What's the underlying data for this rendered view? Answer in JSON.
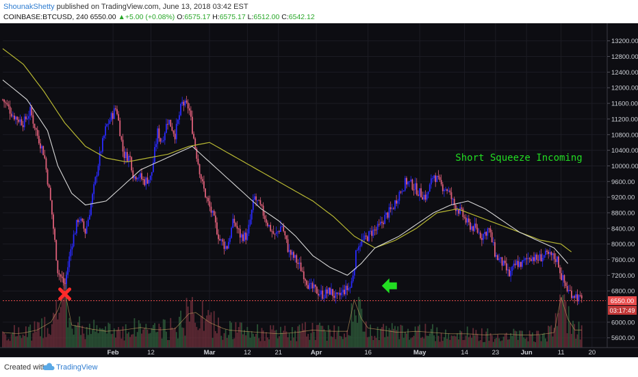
{
  "header": {
    "author": "ShounakShetty",
    "published": " published on TradingView.com, June 13, 2018 03:42 EST",
    "symbol": "COINBASE:BTCUSD, 240",
    "last": "6550.00",
    "change": "+5.00 (+0.08%)",
    "o_label": "O:",
    "o_value": "6575.17",
    "h_label": "H:",
    "h_value": "6575.17",
    "l_label": "L:",
    "l_value": "6512.00",
    "c_label": "C:",
    "c_value": "6542.12"
  },
  "footer": {
    "created_with": "Created with",
    "brand": "TradingView"
  },
  "colors": {
    "background": "#0d0d12",
    "up_candle": "#2a2aff",
    "down_candle": "#e0607a",
    "ma_fast": "#d8d8d8",
    "ma_slow": "#b8b832",
    "annotation": "#22dd22",
    "price_line": "#e84c4c",
    "axis_text": "#cfd2d8"
  },
  "chart_data": {
    "type": "line",
    "title": "",
    "annotation": "Short Squeeze Incoming",
    "y_ticks": [
      13200,
      12800,
      12400,
      12000,
      11600,
      11200,
      10800,
      10400,
      10000,
      9600,
      9200,
      8800,
      8400,
      8000,
      7600,
      7200,
      6800,
      6000,
      5600
    ],
    "ylim": [
      5350,
      13650
    ],
    "x_ticks": [
      {
        "label": "Feb",
        "day": 32
      },
      {
        "label": "12",
        "day": 43
      },
      {
        "label": "Mar",
        "day": 60
      },
      {
        "label": "12",
        "day": 71
      },
      {
        "label": "21",
        "day": 80
      },
      {
        "label": "Apr",
        "day": 91
      },
      {
        "label": "16",
        "day": 106
      },
      {
        "label": "May",
        "day": 121
      },
      {
        "label": "14",
        "day": 134
      },
      {
        "label": "23",
        "day": 143
      },
      {
        "label": "Jun",
        "day": 152
      },
      {
        "label": "11",
        "day": 162
      },
      {
        "label": "20",
        "day": 171
      }
    ],
    "xlim": [
      0,
      175
    ],
    "price_series": {
      "name": "BTCUSD",
      "day": [
        0,
        3,
        6,
        8,
        10,
        12,
        14,
        16,
        18,
        20,
        22,
        24,
        26,
        28,
        30,
        33,
        35,
        37,
        38,
        39,
        41,
        43,
        45,
        46,
        48,
        50,
        52,
        54,
        56,
        58,
        59,
        61,
        63,
        65,
        67,
        69,
        71,
        73,
        75,
        77,
        79,
        81,
        83,
        85,
        87,
        89,
        91,
        93,
        95,
        97,
        99,
        101,
        103,
        105,
        107,
        109,
        111,
        113,
        115,
        117,
        119,
        121,
        123,
        125,
        127,
        129,
        131,
        133,
        135,
        137,
        139,
        141,
        143,
        145,
        147,
        149,
        151,
        153,
        155,
        157,
        159,
        161,
        162,
        164,
        166,
        168
      ],
      "close": [
        11700,
        11300,
        11100,
        11400,
        10800,
        10300,
        9000,
        7300,
        6950,
        8000,
        8700,
        8300,
        9200,
        10200,
        11000,
        11500,
        10300,
        10200,
        9700,
        9800,
        9600,
        9700,
        10900,
        10600,
        11200,
        10800,
        11600,
        11500,
        10400,
        9500,
        9200,
        8700,
        8100,
        7900,
        8600,
        8200,
        8200,
        9200,
        8900,
        8500,
        8200,
        8500,
        7800,
        7600,
        7300,
        6900,
        6800,
        6700,
        6800,
        6600,
        6800,
        6900,
        8000,
        8100,
        8300,
        8400,
        8700,
        8900,
        9300,
        9600,
        9500,
        9300,
        9200,
        9800,
        9500,
        9400,
        9000,
        8800,
        8500,
        8400,
        8200,
        8400,
        7700,
        7500,
        7200,
        7500,
        7500,
        7700,
        7600,
        7700,
        7700,
        7600,
        7200,
        6800,
        6700,
        6542
      ]
    },
    "ma_fast": {
      "day": [
        0,
        7,
        13,
        16,
        20,
        24,
        30,
        35,
        40,
        45,
        50,
        55,
        60,
        65,
        70,
        75,
        80,
        85,
        90,
        95,
        100,
        104,
        108,
        115,
        120,
        125,
        130,
        135,
        140,
        145,
        150,
        155,
        160,
        164
      ],
      "value": [
        12200,
        11700,
        10900,
        10000,
        9300,
        9000,
        9100,
        9500,
        9900,
        10100,
        10300,
        10500,
        10100,
        9700,
        9300,
        8900,
        8600,
        8200,
        7700,
        7400,
        7200,
        7500,
        7900,
        8200,
        8500,
        8800,
        9000,
        9100,
        8900,
        8600,
        8300,
        8100,
        7900,
        7500
      ]
    },
    "ma_slow": {
      "day": [
        0,
        6,
        12,
        18,
        24,
        30,
        36,
        42,
        48,
        54,
        60,
        66,
        72,
        78,
        84,
        90,
        96,
        102,
        108,
        114,
        120,
        126,
        132,
        138,
        144,
        150,
        156,
        162,
        165
      ],
      "value": [
        13000,
        12600,
        11900,
        11100,
        10500,
        10200,
        10100,
        10200,
        10300,
        10500,
        10600,
        10300,
        10000,
        9700,
        9400,
        9100,
        8700,
        8200,
        7900,
        8100,
        8400,
        8800,
        8900,
        8700,
        8500,
        8300,
        8100,
        8000,
        7800
      ]
    },
    "volume": {
      "day": [
        0,
        5,
        10,
        15,
        18,
        20,
        25,
        30,
        35,
        40,
        45,
        50,
        55,
        60,
        65,
        70,
        75,
        80,
        85,
        90,
        95,
        100,
        102,
        105,
        110,
        115,
        120,
        125,
        130,
        135,
        140,
        145,
        150,
        155,
        160,
        162,
        165
      ],
      "value": [
        12000,
        11000,
        14000,
        22000,
        45000,
        18000,
        15000,
        13000,
        14000,
        16000,
        14000,
        15000,
        30000,
        20000,
        14000,
        13000,
        12000,
        11000,
        12000,
        14000,
        13000,
        13000,
        38000,
        16000,
        14000,
        12000,
        13000,
        12000,
        11000,
        11000,
        10000,
        11000,
        10000,
        10000,
        12000,
        40000,
        14000
      ]
    },
    "price_line": 6550,
    "price_label": "6550.00",
    "countdown_label": "03:17:49",
    "markers": [
      {
        "type": "x",
        "day": 18,
        "price": 6720
      },
      {
        "type": "arrow-left",
        "day": 110,
        "price": 6930
      }
    ]
  }
}
